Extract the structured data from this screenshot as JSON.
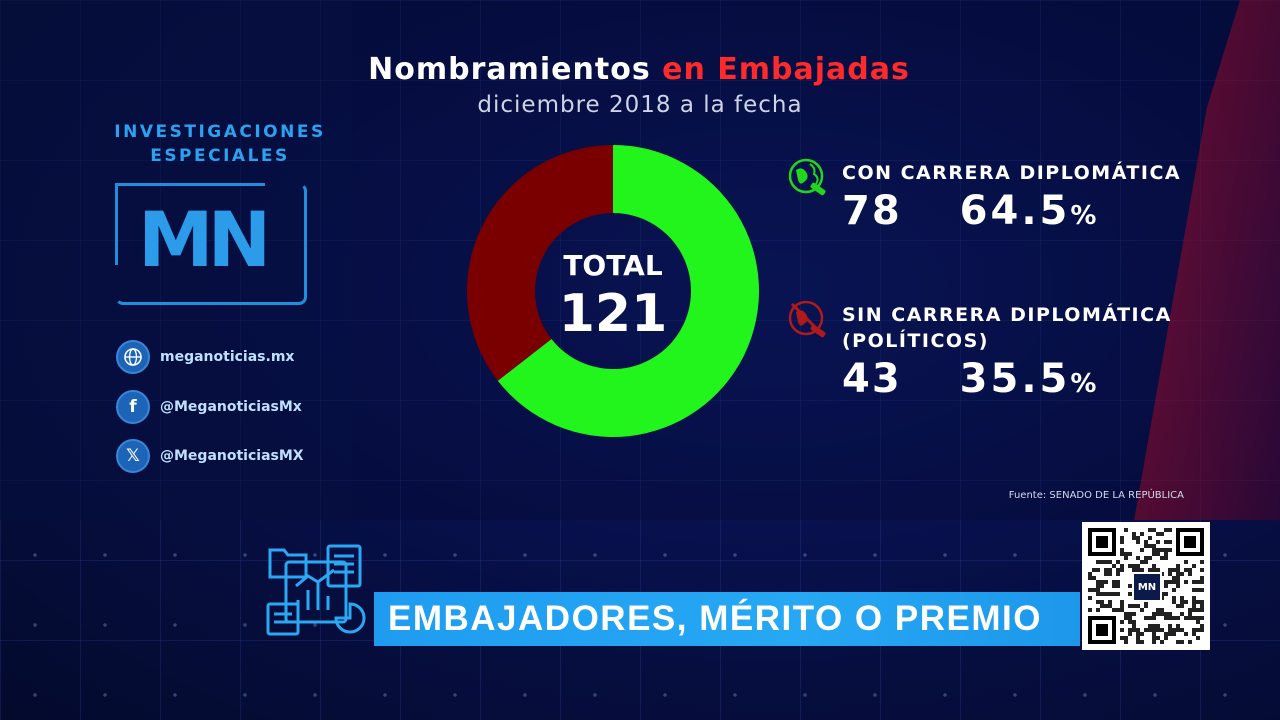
{
  "sidebar": {
    "section_title_line1": "INVESTIGACIONES",
    "section_title_line2": "ESPECIALES",
    "logo_text": "MN",
    "website": "meganoticias.mx",
    "facebook": "@MeganoticiasMx",
    "x_handle": "@MeganoticiasMX",
    "icons": [
      "globe-icon",
      "facebook-icon",
      "x-icon"
    ]
  },
  "chart_data": {
    "type": "pie",
    "title_part1": "Nombramientos",
    "title_part2": "en Embajadas",
    "subtitle": "diciembre 2018 a la fecha",
    "center_label": "TOTAL",
    "center_value": "121",
    "total": 121,
    "series": [
      {
        "name": "CON CARRERA DIPLOMÁTICA",
        "sub": "",
        "value": 78,
        "display_value": "78",
        "percent": "64.5",
        "color": "#22f51c",
        "icon": "globe-diploma-icon"
      },
      {
        "name": "SIN CARRERA DIPLOMÁTICA",
        "sub": "(POLÍTICOS)",
        "value": 43,
        "display_value": "43",
        "percent": "35.5",
        "color": "#7a0000",
        "icon": "no-globe-icon"
      }
    ],
    "source": "Fuente: SENADO DE LA REPÚBLICA"
  },
  "lower_third": {
    "headline": "EMBAJADORES, MÉRITO O PREMIO",
    "qr_logo": "MN"
  },
  "colors": {
    "accent_blue": "#1f9cf0",
    "title_red": "#ff2a2a",
    "green": "#22f51c",
    "dark_red": "#7a0000"
  }
}
